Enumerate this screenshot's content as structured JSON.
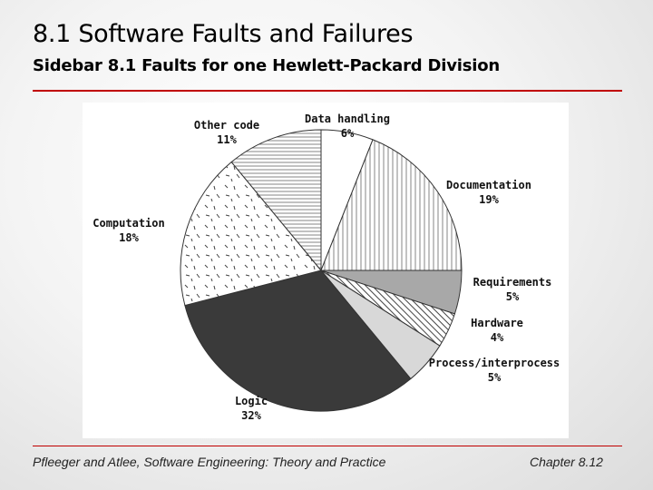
{
  "slide": {
    "title": "8.1 Software Faults and Failures",
    "subtitle": "Sidebar 8.1 Faults for one Hewlett-Packard Division",
    "footer_left": "Pfleeger and Atlee, Software Engineering: Theory and Practice",
    "footer_right": "Chapter 8.12"
  },
  "chart_data": {
    "type": "pie",
    "title": "",
    "slices": [
      {
        "label": "Data handling",
        "value": 6,
        "value_label": "6%",
        "fill": "white"
      },
      {
        "label": "Documentation",
        "value": 19,
        "value_label": "19%",
        "fill": "vertical-lines"
      },
      {
        "label": "Requirements",
        "value": 5,
        "value_label": "5%",
        "fill": "gray"
      },
      {
        "label": "Hardware",
        "value": 4,
        "value_label": "4%",
        "fill": "diagonal-lines"
      },
      {
        "label": "Process/interprocess",
        "value": 5,
        "value_label": "5%",
        "fill": "light-gray"
      },
      {
        "label": "Logic",
        "value": 32,
        "value_label": "32%",
        "fill": "dark-gray"
      },
      {
        "label": "Computation",
        "value": 18,
        "value_label": "18%",
        "fill": "dashes"
      },
      {
        "label": "Other code",
        "value": 11,
        "value_label": "11%",
        "fill": "horizontal-lines"
      }
    ],
    "start_angle_deg": 0,
    "direction": "clockwise",
    "colors": {
      "dark": "#3a3a3a",
      "gray": "#a8a8a8",
      "light_gray": "#d8d8d8",
      "line": "#555555"
    }
  }
}
